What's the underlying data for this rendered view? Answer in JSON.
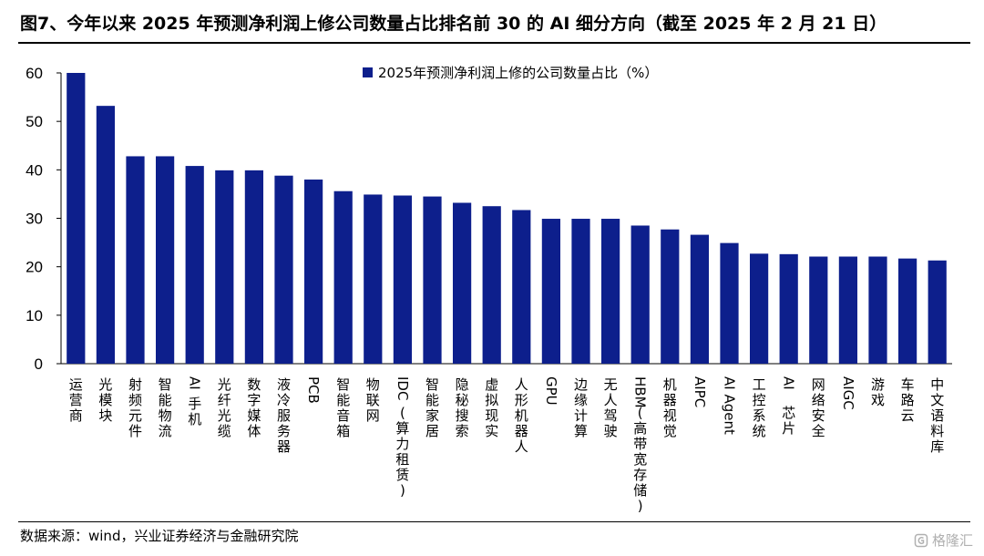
{
  "title": "图7、今年以来 2025 年预测净利润上修公司数量占比排名前 30 的 AI 细分方向（截至 2025 年 2 月 21 日）",
  "source": "数据来源：wind，兴业证券经济与金融研究院",
  "watermark": {
    "icon": "gelonghui-logo-icon",
    "text": "格隆汇"
  },
  "chart_data": {
    "type": "bar",
    "title": "",
    "xlabel": "",
    "ylabel": "",
    "ylim": [
      0,
      60
    ],
    "yticks": [
      0,
      10,
      20,
      30,
      40,
      50,
      60
    ],
    "grid": false,
    "legend": "top-center",
    "categories": [
      "运营商",
      "光模块",
      "射频元件",
      "智能物流",
      "AI手机",
      "光纤光缆",
      "数字媒体",
      "液冷服务器",
      "PCB",
      "智能音箱",
      "物联网",
      "IDC(算力租赁)",
      "智能家居",
      "隐秘搜索",
      "虚拟现实",
      "人形机器人",
      "GPU",
      "边缘计算",
      "无人驾驶",
      "HBM(高带宽存储)",
      "机器视觉",
      "AIPC",
      "AI Agent",
      "工控系统",
      "AI 芯片",
      "网络安全",
      "AIGC",
      "游戏",
      "车路云",
      "中文语料库"
    ],
    "series": [
      {
        "name": "2025年预测净利润上修的公司数量占比（%）",
        "color": "#0d1f8c",
        "values": [
          60.0,
          53.2,
          42.8,
          42.8,
          40.8,
          39.9,
          39.9,
          38.8,
          38.0,
          35.6,
          34.9,
          34.7,
          34.5,
          33.2,
          32.5,
          31.7,
          29.9,
          29.9,
          29.9,
          28.5,
          27.7,
          26.6,
          24.9,
          22.7,
          22.6,
          22.1,
          22.1,
          22.1,
          21.7,
          21.3
        ]
      }
    ]
  }
}
